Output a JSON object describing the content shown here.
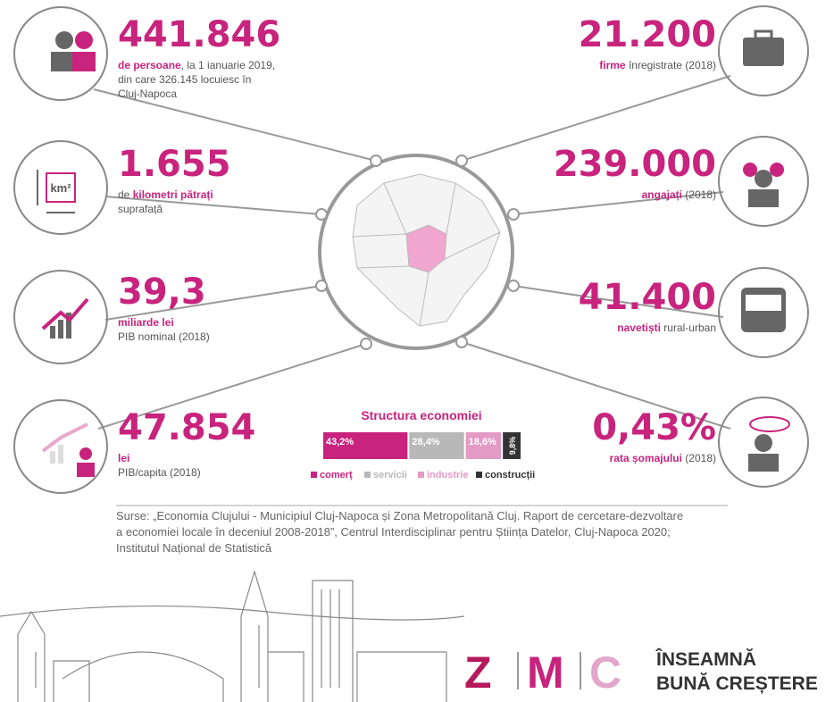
{
  "left_stats": [
    {
      "value": "441.846",
      "lines": [
        [
          {
            "text": "de persoane",
            "highlight": true
          },
          {
            "text": ", la 1 ianuarie 2019,"
          }
        ],
        [
          {
            "text": "din care 326.145 locuiesc în"
          }
        ],
        [
          {
            "text": "Cluj-Napoca"
          }
        ]
      ]
    },
    {
      "value": "1.655",
      "lines": [
        [
          {
            "text": "de "
          },
          {
            "text": "kilometri pătrați",
            "highlight": true
          }
        ],
        [
          {
            "text": "suprafață"
          }
        ]
      ]
    },
    {
      "value": "39,3",
      "lines": [
        [
          {
            "text": "miliarde lei",
            "highlight": true
          }
        ],
        [
          {
            "text": "PIB nominal (2018)"
          }
        ]
      ]
    },
    {
      "value": "47.854",
      "lines": [
        [
          {
            "text": "lei",
            "highlight": true
          }
        ],
        [
          {
            "text": "PIB/capita (2018)"
          }
        ]
      ]
    }
  ],
  "right_stats": [
    {
      "value": "21.200",
      "lines": [
        [
          {
            "text": "firme",
            "highlight": true
          },
          {
            "text": " înregistrate (2018)"
          }
        ]
      ]
    },
    {
      "value": "239.000",
      "lines": [
        [
          {
            "text": "angajați",
            "highlight": true
          },
          {
            "text": " (2018)"
          }
        ]
      ]
    },
    {
      "value": "41.400",
      "lines": [
        [
          {
            "text": "navetiști",
            "highlight": true
          },
          {
            "text": " rural-urban"
          }
        ]
      ]
    },
    {
      "value": "0,43%",
      "lines": [
        [
          {
            "text": "rata șomajului",
            "highlight": true
          },
          {
            "text": " (2018)"
          }
        ]
      ]
    }
  ],
  "icon_label": "km²",
  "economy_chart": {
    "type": "stacked-bar",
    "title": "Structura economiei",
    "xlim": [
      0,
      100
    ],
    "series": [
      {
        "name": "comerț",
        "color": "#c8237d",
        "values": [
          43.2
        ],
        "value_labels": [
          "43,2%"
        ]
      },
      {
        "name": "servicii",
        "color": "#b8b8b8",
        "values": [
          28.4
        ],
        "value_labels": [
          "28,4%"
        ]
      },
      {
        "name": "industrie",
        "color": "#e39ac4",
        "values": [
          18.6
        ],
        "value_labels": [
          "18,6%"
        ]
      },
      {
        "name": "construcții",
        "color": "#333333",
        "values": [
          9.8
        ],
        "value_labels": [
          "9,8%"
        ]
      }
    ]
  },
  "sources": [
    "Surse: „Economia Clujului - Municipiul Cluj-Napoca și Zona Metropolitană Cluj. Raport de cercetare-dezvoltare",
    "a economiei locale în deceniul 2008-2018”, Centrul Interdisciplinar pentru Știința Datelor, Cluj-Napoca 2020;",
    "Institutul Național de Statistică"
  ],
  "logo": {
    "letters": [
      "Z",
      "M",
      "C"
    ],
    "slogan": [
      "ÎNSEAMNĂ",
      "BUNĂ CREȘTERE"
    ]
  }
}
